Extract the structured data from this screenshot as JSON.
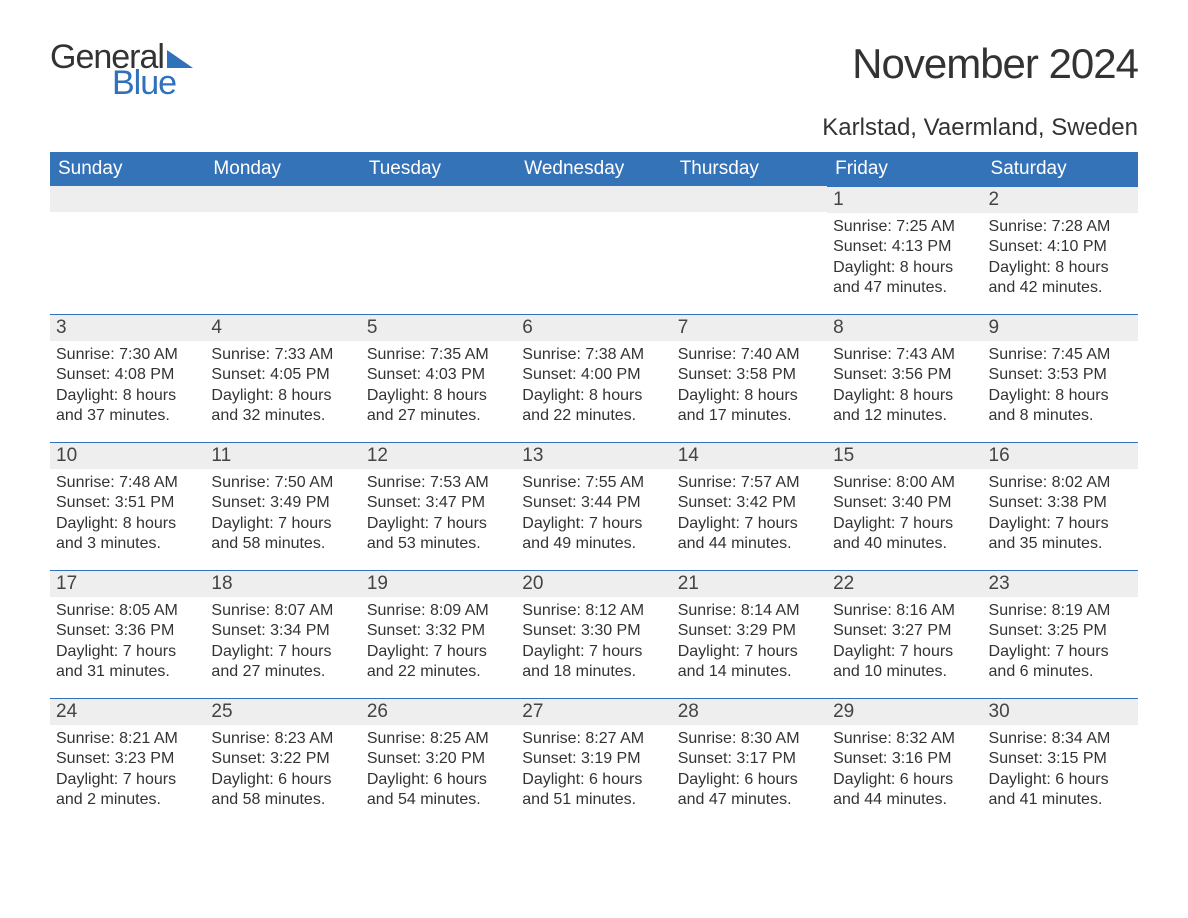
{
  "colors": {
    "brand_blue": "#2f72b9",
    "header_bg": "#3573b9",
    "header_text": "#ffffff",
    "daynum_bg": "#eeeeee",
    "text": "#333333",
    "page_bg": "#ffffff"
  },
  "typography": {
    "title_fontsize": 42,
    "location_fontsize": 24,
    "dayheader_fontsize": 19,
    "daynum_fontsize": 19,
    "body_fontsize": 16,
    "font_family": "Arial"
  },
  "logo": {
    "word1": "General",
    "word2": "Blue"
  },
  "title": "November 2024",
  "location": "Karlstad, Vaermland, Sweden",
  "day_headers": [
    "Sunday",
    "Monday",
    "Tuesday",
    "Wednesday",
    "Thursday",
    "Friday",
    "Saturday"
  ],
  "labels": {
    "sunrise": "Sunrise:",
    "sunset": "Sunset:",
    "daylight": "Daylight:"
  },
  "weeks": [
    [
      null,
      null,
      null,
      null,
      null,
      {
        "n": "1",
        "sunrise": "7:25 AM",
        "sunset": "4:13 PM",
        "daylight": "8 hours and 47 minutes."
      },
      {
        "n": "2",
        "sunrise": "7:28 AM",
        "sunset": "4:10 PM",
        "daylight": "8 hours and 42 minutes."
      }
    ],
    [
      {
        "n": "3",
        "sunrise": "7:30 AM",
        "sunset": "4:08 PM",
        "daylight": "8 hours and 37 minutes."
      },
      {
        "n": "4",
        "sunrise": "7:33 AM",
        "sunset": "4:05 PM",
        "daylight": "8 hours and 32 minutes."
      },
      {
        "n": "5",
        "sunrise": "7:35 AM",
        "sunset": "4:03 PM",
        "daylight": "8 hours and 27 minutes."
      },
      {
        "n": "6",
        "sunrise": "7:38 AM",
        "sunset": "4:00 PM",
        "daylight": "8 hours and 22 minutes."
      },
      {
        "n": "7",
        "sunrise": "7:40 AM",
        "sunset": "3:58 PM",
        "daylight": "8 hours and 17 minutes."
      },
      {
        "n": "8",
        "sunrise": "7:43 AM",
        "sunset": "3:56 PM",
        "daylight": "8 hours and 12 minutes."
      },
      {
        "n": "9",
        "sunrise": "7:45 AM",
        "sunset": "3:53 PM",
        "daylight": "8 hours and 8 minutes."
      }
    ],
    [
      {
        "n": "10",
        "sunrise": "7:48 AM",
        "sunset": "3:51 PM",
        "daylight": "8 hours and 3 minutes."
      },
      {
        "n": "11",
        "sunrise": "7:50 AM",
        "sunset": "3:49 PM",
        "daylight": "7 hours and 58 minutes."
      },
      {
        "n": "12",
        "sunrise": "7:53 AM",
        "sunset": "3:47 PM",
        "daylight": "7 hours and 53 minutes."
      },
      {
        "n": "13",
        "sunrise": "7:55 AM",
        "sunset": "3:44 PM",
        "daylight": "7 hours and 49 minutes."
      },
      {
        "n": "14",
        "sunrise": "7:57 AM",
        "sunset": "3:42 PM",
        "daylight": "7 hours and 44 minutes."
      },
      {
        "n": "15",
        "sunrise": "8:00 AM",
        "sunset": "3:40 PM",
        "daylight": "7 hours and 40 minutes."
      },
      {
        "n": "16",
        "sunrise": "8:02 AM",
        "sunset": "3:38 PM",
        "daylight": "7 hours and 35 minutes."
      }
    ],
    [
      {
        "n": "17",
        "sunrise": "8:05 AM",
        "sunset": "3:36 PM",
        "daylight": "7 hours and 31 minutes."
      },
      {
        "n": "18",
        "sunrise": "8:07 AM",
        "sunset": "3:34 PM",
        "daylight": "7 hours and 27 minutes."
      },
      {
        "n": "19",
        "sunrise": "8:09 AM",
        "sunset": "3:32 PM",
        "daylight": "7 hours and 22 minutes."
      },
      {
        "n": "20",
        "sunrise": "8:12 AM",
        "sunset": "3:30 PM",
        "daylight": "7 hours and 18 minutes."
      },
      {
        "n": "21",
        "sunrise": "8:14 AM",
        "sunset": "3:29 PM",
        "daylight": "7 hours and 14 minutes."
      },
      {
        "n": "22",
        "sunrise": "8:16 AM",
        "sunset": "3:27 PM",
        "daylight": "7 hours and 10 minutes."
      },
      {
        "n": "23",
        "sunrise": "8:19 AM",
        "sunset": "3:25 PM",
        "daylight": "7 hours and 6 minutes."
      }
    ],
    [
      {
        "n": "24",
        "sunrise": "8:21 AM",
        "sunset": "3:23 PM",
        "daylight": "7 hours and 2 minutes."
      },
      {
        "n": "25",
        "sunrise": "8:23 AM",
        "sunset": "3:22 PM",
        "daylight": "6 hours and 58 minutes."
      },
      {
        "n": "26",
        "sunrise": "8:25 AM",
        "sunset": "3:20 PM",
        "daylight": "6 hours and 54 minutes."
      },
      {
        "n": "27",
        "sunrise": "8:27 AM",
        "sunset": "3:19 PM",
        "daylight": "6 hours and 51 minutes."
      },
      {
        "n": "28",
        "sunrise": "8:30 AM",
        "sunset": "3:17 PM",
        "daylight": "6 hours and 47 minutes."
      },
      {
        "n": "29",
        "sunrise": "8:32 AM",
        "sunset": "3:16 PM",
        "daylight": "6 hours and 44 minutes."
      },
      {
        "n": "30",
        "sunrise": "8:34 AM",
        "sunset": "3:15 PM",
        "daylight": "6 hours and 41 minutes."
      }
    ]
  ]
}
